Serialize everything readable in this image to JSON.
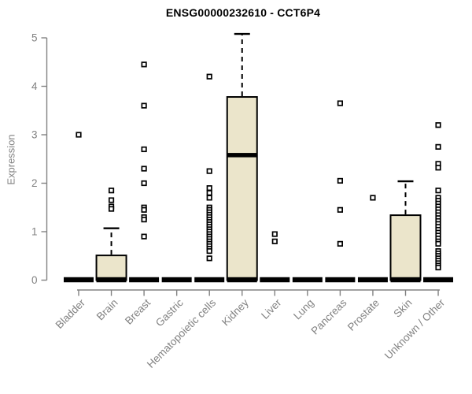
{
  "chart_data": {
    "type": "boxplot",
    "title": "ENSG00000232610 - CCT6P4",
    "xlabel": "",
    "ylabel": "Expression",
    "ylim": [
      0,
      5
    ],
    "yticks": [
      0,
      1,
      2,
      3,
      4,
      5
    ],
    "grid": false,
    "legend": false,
    "colors": {
      "box_fill": "#EBE5CB",
      "box_border": "#000000",
      "median": "#000000",
      "outlier_fill": "#ffffff",
      "axis": "#828282",
      "title": "#000000"
    },
    "categories": [
      "Bladder",
      "Brain",
      "Breast",
      "Gastric",
      "Hematopoietic cells",
      "Kidney",
      "Liver",
      "Lung",
      "Pancreas",
      "Prostate",
      "Skin",
      "Unknown / Other"
    ],
    "series": [
      {
        "category": "Bladder",
        "q1": 0,
        "median": 0,
        "q3": 0,
        "whisker_low": 0,
        "whisker_high": 0,
        "outliers": [
          3.0
        ]
      },
      {
        "category": "Brain",
        "q1": 0,
        "median": 0,
        "q3": 0.51,
        "whisker_low": 0,
        "whisker_high": 1.07,
        "outliers": [
          1.85,
          1.65,
          1.52,
          1.47
        ]
      },
      {
        "category": "Breast",
        "q1": 0,
        "median": 0,
        "q3": 0,
        "whisker_low": 0,
        "whisker_high": 0,
        "outliers": [
          4.45,
          3.6,
          2.7,
          2.3,
          2.0,
          1.5,
          1.45,
          1.3,
          1.25,
          0.9
        ]
      },
      {
        "category": "Gastric",
        "q1": 0,
        "median": 0,
        "q3": 0,
        "whisker_low": 0,
        "whisker_high": 0,
        "outliers": []
      },
      {
        "category": "Hematopoietic cells",
        "q1": 0,
        "median": 0,
        "q3": 0,
        "whisker_low": 0,
        "whisker_high": 0,
        "outliers": [
          4.2,
          2.25,
          1.9,
          1.8,
          1.7,
          1.5,
          1.45,
          1.4,
          1.35,
          1.3,
          1.25,
          1.2,
          1.15,
          1.1,
          1.05,
          1.0,
          0.95,
          0.9,
          0.85,
          0.8,
          0.75,
          0.7,
          0.65,
          0.6,
          0.45
        ]
      },
      {
        "category": "Kidney",
        "q1": 0,
        "median": 2.58,
        "q3": 3.78,
        "whisker_low": 0,
        "whisker_high": 5.08,
        "outliers": []
      },
      {
        "category": "Liver",
        "q1": 0,
        "median": 0,
        "q3": 0,
        "whisker_low": 0,
        "whisker_high": 0,
        "outliers": [
          0.95,
          0.8
        ]
      },
      {
        "category": "Lung",
        "q1": 0,
        "median": 0,
        "q3": 0,
        "whisker_low": 0,
        "whisker_high": 0,
        "outliers": []
      },
      {
        "category": "Pancreas",
        "q1": 0,
        "median": 0,
        "q3": 0,
        "whisker_low": 0,
        "whisker_high": 0,
        "outliers": [
          3.65,
          2.05,
          1.45,
          0.75
        ]
      },
      {
        "category": "Prostate",
        "q1": 0,
        "median": 0,
        "q3": 0,
        "whisker_low": 0,
        "whisker_high": 0,
        "outliers": [
          1.7
        ]
      },
      {
        "category": "Skin",
        "q1": 0,
        "median": 0,
        "q3": 1.34,
        "whisker_low": 0,
        "whisker_high": 2.04,
        "outliers": []
      },
      {
        "category": "Unknown / Other",
        "q1": 0,
        "median": 0,
        "q3": 0,
        "whisker_low": 0,
        "whisker_high": 0,
        "outliers": [
          3.2,
          2.75,
          2.4,
          2.32,
          1.85,
          1.7,
          1.64,
          1.58,
          1.52,
          1.46,
          1.4,
          1.34,
          1.28,
          1.22,
          1.16,
          1.1,
          1.04,
          0.98,
          0.92,
          0.86,
          0.8,
          0.75,
          0.6,
          0.55,
          0.5,
          0.45,
          0.4,
          0.35,
          0.3,
          0.26
        ]
      }
    ]
  }
}
